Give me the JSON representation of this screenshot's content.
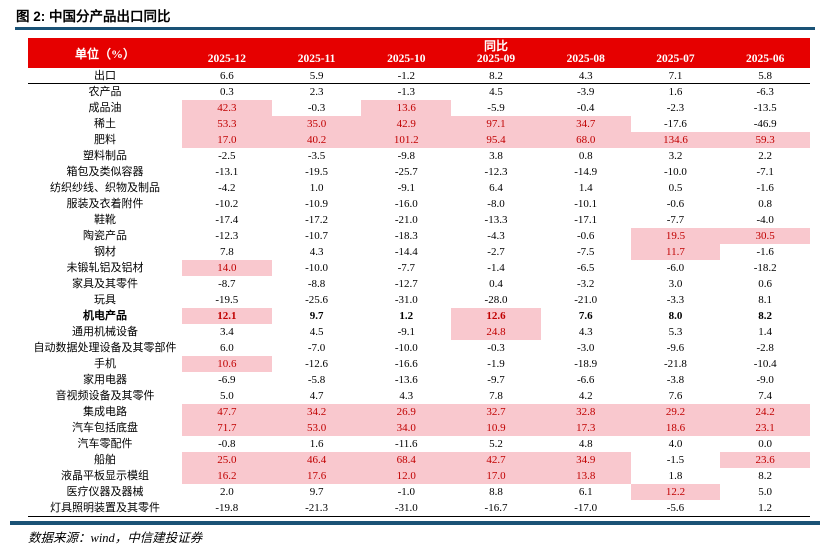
{
  "title": "图 2: 中国分产品出口同比",
  "footer": {
    "source": "数据来源：wind，中信建投证券"
  },
  "colors": {
    "header_red": "#e60000",
    "highlight_pink": "#f9c8ce",
    "highlight_text": "#c00000",
    "rule_navy": "#1a5276"
  },
  "chart_data": {
    "type": "table",
    "title": "图 2: 中国分产品出口同比",
    "unit_label": "单位（%）",
    "group_header": "同比",
    "columns": [
      "2025-12",
      "2025-11",
      "2025-10",
      "2025-09",
      "2025-08",
      "2025-07",
      "2025-06"
    ],
    "rows": [
      {
        "label": "出口",
        "values": [
          "6.6",
          "5.9",
          "-1.2",
          "8.2",
          "4.3",
          "7.1",
          "5.8"
        ],
        "highlight": [
          0,
          0,
          0,
          0,
          0,
          0,
          0
        ],
        "bold": false,
        "separator": true
      },
      {
        "label": "农产品",
        "values": [
          "0.3",
          "2.3",
          "-1.3",
          "4.5",
          "-3.9",
          "1.6",
          "-6.3"
        ],
        "highlight": [
          0,
          0,
          0,
          0,
          0,
          0,
          0
        ],
        "bold": false,
        "separator": false
      },
      {
        "label": "成品油",
        "values": [
          "42.3",
          "-0.3",
          "13.6",
          "-5.9",
          "-0.4",
          "-2.3",
          "-13.5"
        ],
        "highlight": [
          1,
          0,
          1,
          0,
          0,
          0,
          0
        ],
        "bold": false,
        "separator": false
      },
      {
        "label": "稀土",
        "values": [
          "53.3",
          "35.0",
          "42.9",
          "97.1",
          "34.7",
          "-17.6",
          "-46.9"
        ],
        "highlight": [
          1,
          1,
          1,
          1,
          1,
          0,
          0
        ],
        "bold": false,
        "separator": false
      },
      {
        "label": "肥料",
        "values": [
          "17.0",
          "40.2",
          "101.2",
          "95.4",
          "68.0",
          "134.6",
          "59.3"
        ],
        "highlight": [
          1,
          1,
          1,
          1,
          1,
          1,
          1
        ],
        "bold": false,
        "separator": false
      },
      {
        "label": "塑料制品",
        "values": [
          "-2.5",
          "-3.5",
          "-9.8",
          "3.8",
          "0.8",
          "3.2",
          "2.2"
        ],
        "highlight": [
          0,
          0,
          0,
          0,
          0,
          0,
          0
        ],
        "bold": false,
        "separator": false
      },
      {
        "label": "箱包及类似容器",
        "values": [
          "-13.1",
          "-19.5",
          "-25.7",
          "-12.3",
          "-14.9",
          "-10.0",
          "-7.1"
        ],
        "highlight": [
          0,
          0,
          0,
          0,
          0,
          0,
          0
        ],
        "bold": false,
        "separator": false
      },
      {
        "label": "纺织纱线、织物及制品",
        "values": [
          "-4.2",
          "1.0",
          "-9.1",
          "6.4",
          "1.4",
          "0.5",
          "-1.6"
        ],
        "highlight": [
          0,
          0,
          0,
          0,
          0,
          0,
          0
        ],
        "bold": false,
        "separator": false
      },
      {
        "label": "服装及衣着附件",
        "values": [
          "-10.2",
          "-10.9",
          "-16.0",
          "-8.0",
          "-10.1",
          "-0.6",
          "0.8"
        ],
        "highlight": [
          0,
          0,
          0,
          0,
          0,
          0,
          0
        ],
        "bold": false,
        "separator": false
      },
      {
        "label": "鞋靴",
        "values": [
          "-17.4",
          "-17.2",
          "-21.0",
          "-13.3",
          "-17.1",
          "-7.7",
          "-4.0"
        ],
        "highlight": [
          0,
          0,
          0,
          0,
          0,
          0,
          0
        ],
        "bold": false,
        "separator": false
      },
      {
        "label": "陶瓷产品",
        "values": [
          "-12.3",
          "-10.7",
          "-18.3",
          "-4.3",
          "-0.6",
          "19.5",
          "30.5"
        ],
        "highlight": [
          0,
          0,
          0,
          0,
          0,
          1,
          1
        ],
        "bold": false,
        "separator": false
      },
      {
        "label": "钢材",
        "values": [
          "7.8",
          "4.3",
          "-14.4",
          "-2.7",
          "-7.5",
          "11.7",
          "-1.6"
        ],
        "highlight": [
          0,
          0,
          0,
          0,
          0,
          1,
          0
        ],
        "bold": false,
        "separator": false
      },
      {
        "label": "未锻轧铝及铝材",
        "values": [
          "14.0",
          "-10.0",
          "-7.7",
          "-1.4",
          "-6.5",
          "-6.0",
          "-18.2"
        ],
        "highlight": [
          1,
          0,
          0,
          0,
          0,
          0,
          0
        ],
        "bold": false,
        "separator": false
      },
      {
        "label": "家具及其零件",
        "values": [
          "-8.7",
          "-8.8",
          "-12.7",
          "0.4",
          "-3.2",
          "3.0",
          "0.6"
        ],
        "highlight": [
          0,
          0,
          0,
          0,
          0,
          0,
          0
        ],
        "bold": false,
        "separator": false
      },
      {
        "label": "玩具",
        "values": [
          "-19.5",
          "-25.6",
          "-31.0",
          "-28.0",
          "-21.0",
          "-3.3",
          "8.1"
        ],
        "highlight": [
          0,
          0,
          0,
          0,
          0,
          0,
          0
        ],
        "bold": false,
        "separator": false
      },
      {
        "label": "机电产品",
        "values": [
          "12.1",
          "9.7",
          "1.2",
          "12.6",
          "7.6",
          "8.0",
          "8.2"
        ],
        "highlight": [
          1,
          0,
          0,
          1,
          0,
          0,
          0
        ],
        "bold": true,
        "separator": false
      },
      {
        "label": "通用机械设备",
        "values": [
          "3.4",
          "4.5",
          "-9.1",
          "24.8",
          "4.3",
          "5.3",
          "1.4"
        ],
        "highlight": [
          0,
          0,
          0,
          1,
          0,
          0,
          0
        ],
        "bold": false,
        "separator": false
      },
      {
        "label": "自动数据处理设备及其零部件",
        "values": [
          "6.0",
          "-7.0",
          "-10.0",
          "-0.3",
          "-3.0",
          "-9.6",
          "-2.8"
        ],
        "highlight": [
          0,
          0,
          0,
          0,
          0,
          0,
          0
        ],
        "bold": false,
        "separator": false
      },
      {
        "label": "手机",
        "values": [
          "10.6",
          "-12.6",
          "-16.6",
          "-1.9",
          "-18.9",
          "-21.8",
          "-10.4"
        ],
        "highlight": [
          1,
          0,
          0,
          0,
          0,
          0,
          0
        ],
        "bold": false,
        "separator": false
      },
      {
        "label": "家用电器",
        "values": [
          "-6.9",
          "-5.8",
          "-13.6",
          "-9.7",
          "-6.6",
          "-3.8",
          "-9.0"
        ],
        "highlight": [
          0,
          0,
          0,
          0,
          0,
          0,
          0
        ],
        "bold": false,
        "separator": false
      },
      {
        "label": "音视频设备及其零件",
        "values": [
          "5.0",
          "4.7",
          "4.3",
          "7.8",
          "4.2",
          "7.6",
          "7.4"
        ],
        "highlight": [
          0,
          0,
          0,
          0,
          0,
          0,
          0
        ],
        "bold": false,
        "separator": false
      },
      {
        "label": "集成电路",
        "values": [
          "47.7",
          "34.2",
          "26.9",
          "32.7",
          "32.8",
          "29.2",
          "24.2"
        ],
        "highlight": [
          1,
          1,
          1,
          1,
          1,
          1,
          1
        ],
        "bold": false,
        "separator": false
      },
      {
        "label": "汽车包括底盘",
        "values": [
          "71.7",
          "53.0",
          "34.0",
          "10.9",
          "17.3",
          "18.6",
          "23.1"
        ],
        "highlight": [
          1,
          1,
          1,
          1,
          1,
          1,
          1
        ],
        "bold": false,
        "separator": false
      },
      {
        "label": "汽车零配件",
        "values": [
          "-0.8",
          "1.6",
          "-11.6",
          "5.2",
          "4.8",
          "4.0",
          "0.0"
        ],
        "highlight": [
          0,
          0,
          0,
          0,
          0,
          0,
          0
        ],
        "bold": false,
        "separator": false
      },
      {
        "label": "船舶",
        "values": [
          "25.0",
          "46.4",
          "68.4",
          "42.7",
          "34.9",
          "-1.5",
          "23.6"
        ],
        "highlight": [
          1,
          1,
          1,
          1,
          1,
          0,
          1
        ],
        "bold": false,
        "separator": false
      },
      {
        "label": "液晶平板显示模组",
        "values": [
          "16.2",
          "17.6",
          "12.0",
          "17.0",
          "13.8",
          "1.8",
          "8.2"
        ],
        "highlight": [
          1,
          1,
          1,
          1,
          1,
          0,
          0
        ],
        "bold": false,
        "separator": false
      },
      {
        "label": "医疗仪器及器械",
        "values": [
          "2.0",
          "9.7",
          "-1.0",
          "8.8",
          "6.1",
          "12.2",
          "5.0"
        ],
        "highlight": [
          0,
          0,
          0,
          0,
          0,
          1,
          0
        ],
        "bold": false,
        "separator": false
      },
      {
        "label": "灯具照明装置及其零件",
        "values": [
          "-19.8",
          "-21.3",
          "-31.0",
          "-16.7",
          "-17.0",
          "-5.6",
          "1.2"
        ],
        "highlight": [
          0,
          0,
          0,
          0,
          0,
          0,
          0
        ],
        "bold": false,
        "separator": false
      }
    ]
  }
}
